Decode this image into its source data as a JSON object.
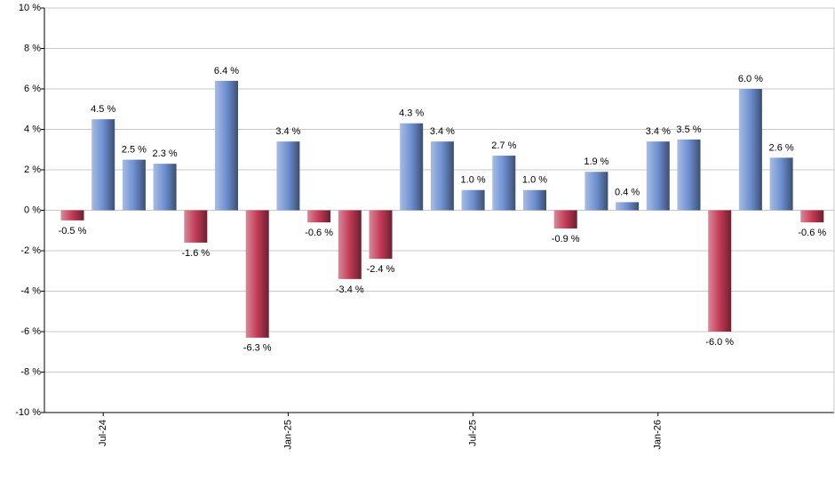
{
  "chart_data": {
    "type": "bar",
    "categories": [
      null,
      "Jul-24",
      null,
      null,
      null,
      null,
      null,
      "Jan-25",
      null,
      null,
      null,
      null,
      null,
      "Jul-25",
      null,
      null,
      null,
      null,
      null,
      "Jan-26",
      null,
      null,
      null,
      null,
      null
    ],
    "values": [
      -0.5,
      4.5,
      2.5,
      2.3,
      -1.6,
      6.4,
      -6.3,
      3.4,
      -0.6,
      -3.4,
      -2.4,
      4.3,
      3.4,
      1.0,
      2.7,
      1.0,
      -0.9,
      1.9,
      0.4,
      3.4,
      3.5,
      -6.0,
      6.0,
      2.6,
      -0.6
    ],
    "value_labels": [
      "-0.5 %",
      "4.5 %",
      "2.5 %",
      "2.3 %",
      "-1.6 %",
      "6.4 %",
      "-6.3 %",
      "3.4 %",
      "-0.6 %",
      "-3.4 %",
      "-2.4 %",
      "4.3 %",
      "3.4 %",
      "1.0 %",
      "2.7 %",
      "1.0 %",
      "-0.9 %",
      "1.9 %",
      "0.4 %",
      "3.4 %",
      "3.5 %",
      "-6.0 %",
      "6.0 %",
      "2.6 %",
      "-0.6 %"
    ],
    "positive_color": "#6d8fd0",
    "negative_color": "#c23a55",
    "ylim": [
      -10,
      10
    ],
    "yticks": [
      {
        "value": -10,
        "label": "-10 %"
      },
      {
        "value": -8,
        "label": "-8 %"
      },
      {
        "value": -6,
        "label": "-6 %"
      },
      {
        "value": -4,
        "label": "-4 %"
      },
      {
        "value": -2,
        "label": "-2 %"
      },
      {
        "value": 0,
        "label": "0 %"
      },
      {
        "value": 2,
        "label": "2 %"
      },
      {
        "value": 4,
        "label": "4 %"
      },
      {
        "value": 6,
        "label": "6 %"
      },
      {
        "value": 8,
        "label": "8 %"
      },
      {
        "value": 10,
        "label": "10 %"
      }
    ],
    "grid": true
  }
}
